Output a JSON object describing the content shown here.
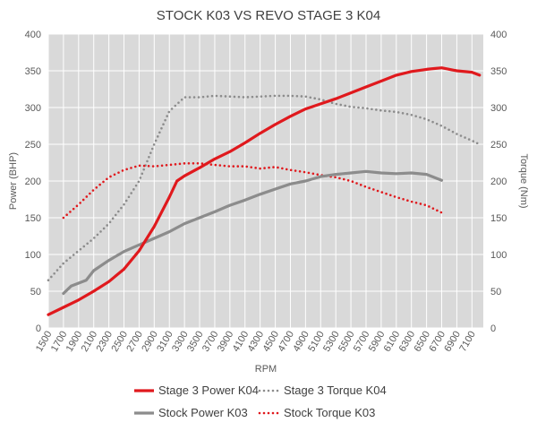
{
  "chart_data": {
    "type": "line",
    "title": "STOCK K03 VS REVO STAGE 3 K04",
    "xlabel": "RPM",
    "ylabel": "Power (BHP)",
    "y2label": "Torque (Nm)",
    "ylim": [
      0,
      400
    ],
    "y2lim": [
      0,
      400
    ],
    "yticks": [
      "0",
      "50",
      "100",
      "150",
      "200",
      "250",
      "300",
      "350",
      "400"
    ],
    "y2ticks": [
      "0",
      "50",
      "100",
      "150",
      "200",
      "250",
      "300",
      "350",
      "400"
    ],
    "xticks": [
      "1500",
      "1700",
      "1900",
      "2100",
      "2300",
      "2500",
      "2700",
      "2900",
      "3100",
      "3300",
      "3500",
      "3700",
      "3900",
      "4100",
      "4300",
      "4500",
      "4700",
      "4900",
      "5100",
      "5300",
      "5500",
      "5700",
      "5900",
      "6100",
      "6300",
      "6500",
      "6700",
      "6900",
      "7100"
    ],
    "xlim": [
      1500,
      7250
    ],
    "grid": true,
    "legend_position": "bottom",
    "series": [
      {
        "name": "Stage 3 Power K04",
        "axis": "left",
        "color": "#e0191d",
        "style": "solid",
        "x": [
          1500,
          1700,
          1900,
          2100,
          2300,
          2500,
          2700,
          2900,
          3100,
          3200,
          3300,
          3500,
          3700,
          3900,
          4100,
          4300,
          4500,
          4700,
          4900,
          5100,
          5300,
          5500,
          5700,
          5900,
          6100,
          6300,
          6500,
          6600,
          6700,
          6900,
          7100,
          7200
        ],
        "y": [
          18,
          28,
          38,
          50,
          63,
          80,
          105,
          138,
          178,
          200,
          207,
          218,
          230,
          240,
          252,
          265,
          277,
          288,
          298,
          305,
          312,
          320,
          328,
          336,
          344,
          349,
          352,
          353,
          354,
          350,
          348,
          344
        ]
      },
      {
        "name": "Stage 3 Torque K04",
        "axis": "right",
        "color": "#8c8c8c",
        "style": "dotted",
        "x": [
          1500,
          1700,
          1900,
          2100,
          2300,
          2500,
          2700,
          2900,
          3100,
          3300,
          3500,
          3700,
          3900,
          4100,
          4300,
          4500,
          4700,
          4900,
          5100,
          5300,
          5500,
          5700,
          5900,
          6100,
          6300,
          6500,
          6700,
          6900,
          7100,
          7200
        ],
        "y": [
          65,
          88,
          105,
          122,
          142,
          168,
          200,
          250,
          295,
          314,
          314,
          316,
          315,
          314,
          315,
          316,
          316,
          315,
          311,
          305,
          301,
          299,
          296,
          294,
          290,
          284,
          275,
          264,
          255,
          250
        ]
      },
      {
        "name": "Stock Power K03",
        "axis": "left",
        "color": "#8c8c8c",
        "style": "solid",
        "x": [
          1700,
          1800,
          2000,
          2100,
          2300,
          2500,
          2700,
          2900,
          3100,
          3300,
          3500,
          3700,
          3900,
          4100,
          4300,
          4500,
          4700,
          4900,
          5100,
          5300,
          5500,
          5700,
          5900,
          6100,
          6300,
          6500,
          6700
        ],
        "y": [
          47,
          57,
          65,
          78,
          92,
          104,
          113,
          122,
          131,
          142,
          150,
          158,
          167,
          174,
          182,
          189,
          196,
          200,
          206,
          209,
          211,
          213,
          211,
          210,
          211,
          209,
          201
        ]
      },
      {
        "name": "Stock Torque K03",
        "axis": "right",
        "color": "#e0191d",
        "style": "dotted",
        "x": [
          1700,
          1900,
          2100,
          2300,
          2500,
          2700,
          2900,
          3100,
          3300,
          3500,
          3700,
          3900,
          4100,
          4300,
          4500,
          4700,
          4900,
          5100,
          5300,
          5500,
          5700,
          5900,
          6100,
          6300,
          6500,
          6700
        ],
        "y": [
          150,
          168,
          188,
          205,
          215,
          221,
          220,
          222,
          224,
          224,
          222,
          220,
          220,
          217,
          219,
          215,
          212,
          208,
          205,
          200,
          192,
          185,
          178,
          172,
          167,
          157
        ]
      }
    ]
  }
}
